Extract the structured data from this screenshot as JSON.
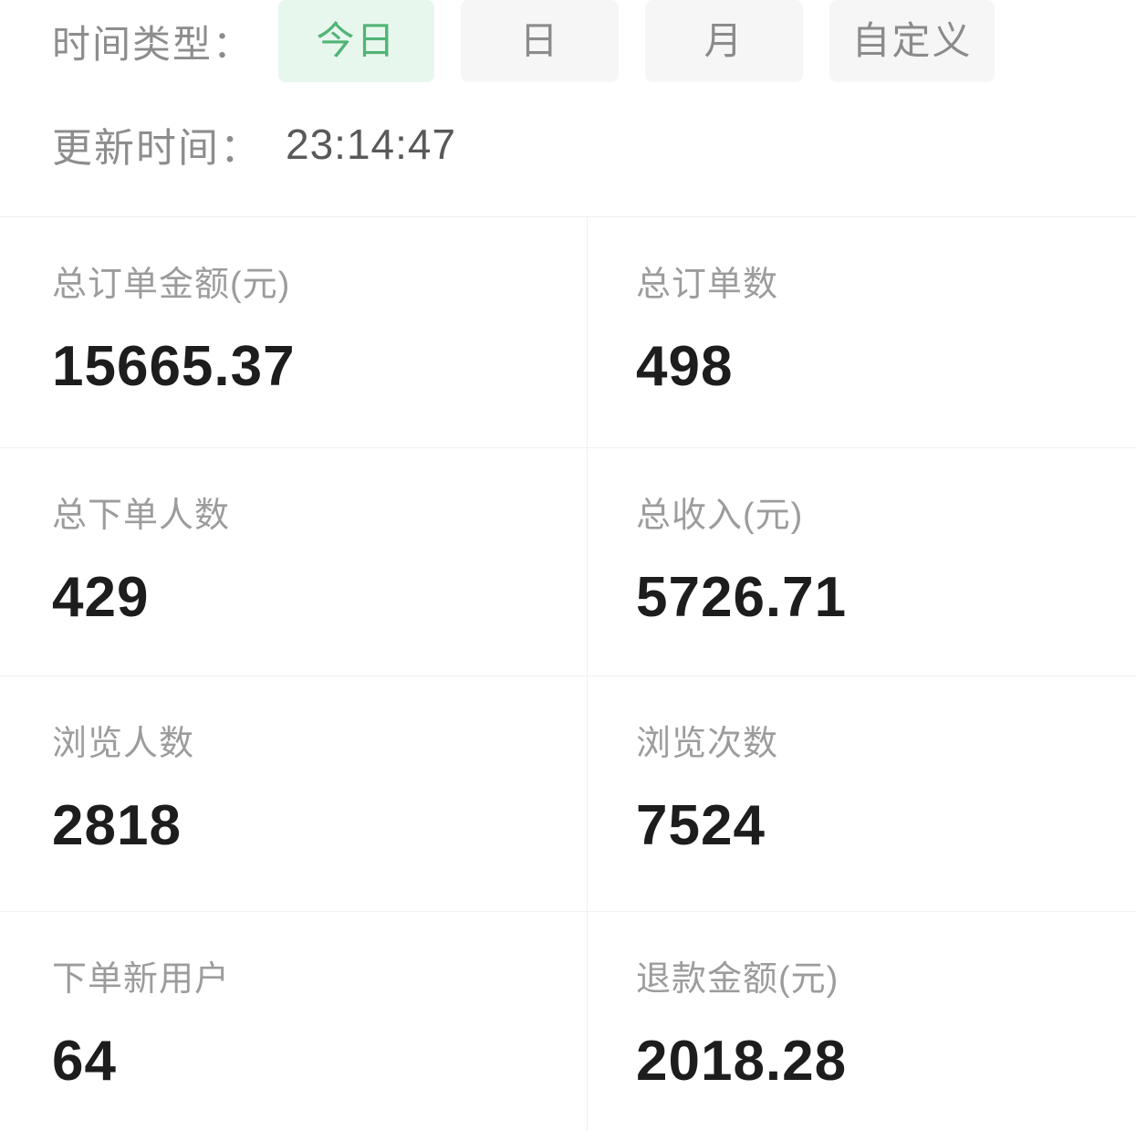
{
  "filter": {
    "label": "时间类型：",
    "options": [
      {
        "label": "今日",
        "active": true
      },
      {
        "label": "日",
        "active": false
      },
      {
        "label": "月",
        "active": false
      },
      {
        "label": "自定义",
        "active": false
      }
    ]
  },
  "update_time": {
    "label": "更新时间：",
    "value": "23:14:47"
  },
  "stats": {
    "cards": [
      {
        "label": "总订单金额(元)",
        "value": "15665.37"
      },
      {
        "label": "总订单数",
        "value": "498"
      },
      {
        "label": "总下单人数",
        "value": "429"
      },
      {
        "label": "总收入(元)",
        "value": "5726.71"
      },
      {
        "label": "浏览人数",
        "value": "2818"
      },
      {
        "label": "浏览次数",
        "value": "7524"
      },
      {
        "label": "下单新用户",
        "value": "64"
      },
      {
        "label": "退款金额(元)",
        "value": "2018.28"
      }
    ]
  },
  "colors": {
    "accent_green": "#51b475",
    "accent_green_bg": "#e8f7ee",
    "inactive_button_bg": "#f5f6f5",
    "label_gray": "#9c9c9c",
    "value_black": "#1d1d1d"
  }
}
